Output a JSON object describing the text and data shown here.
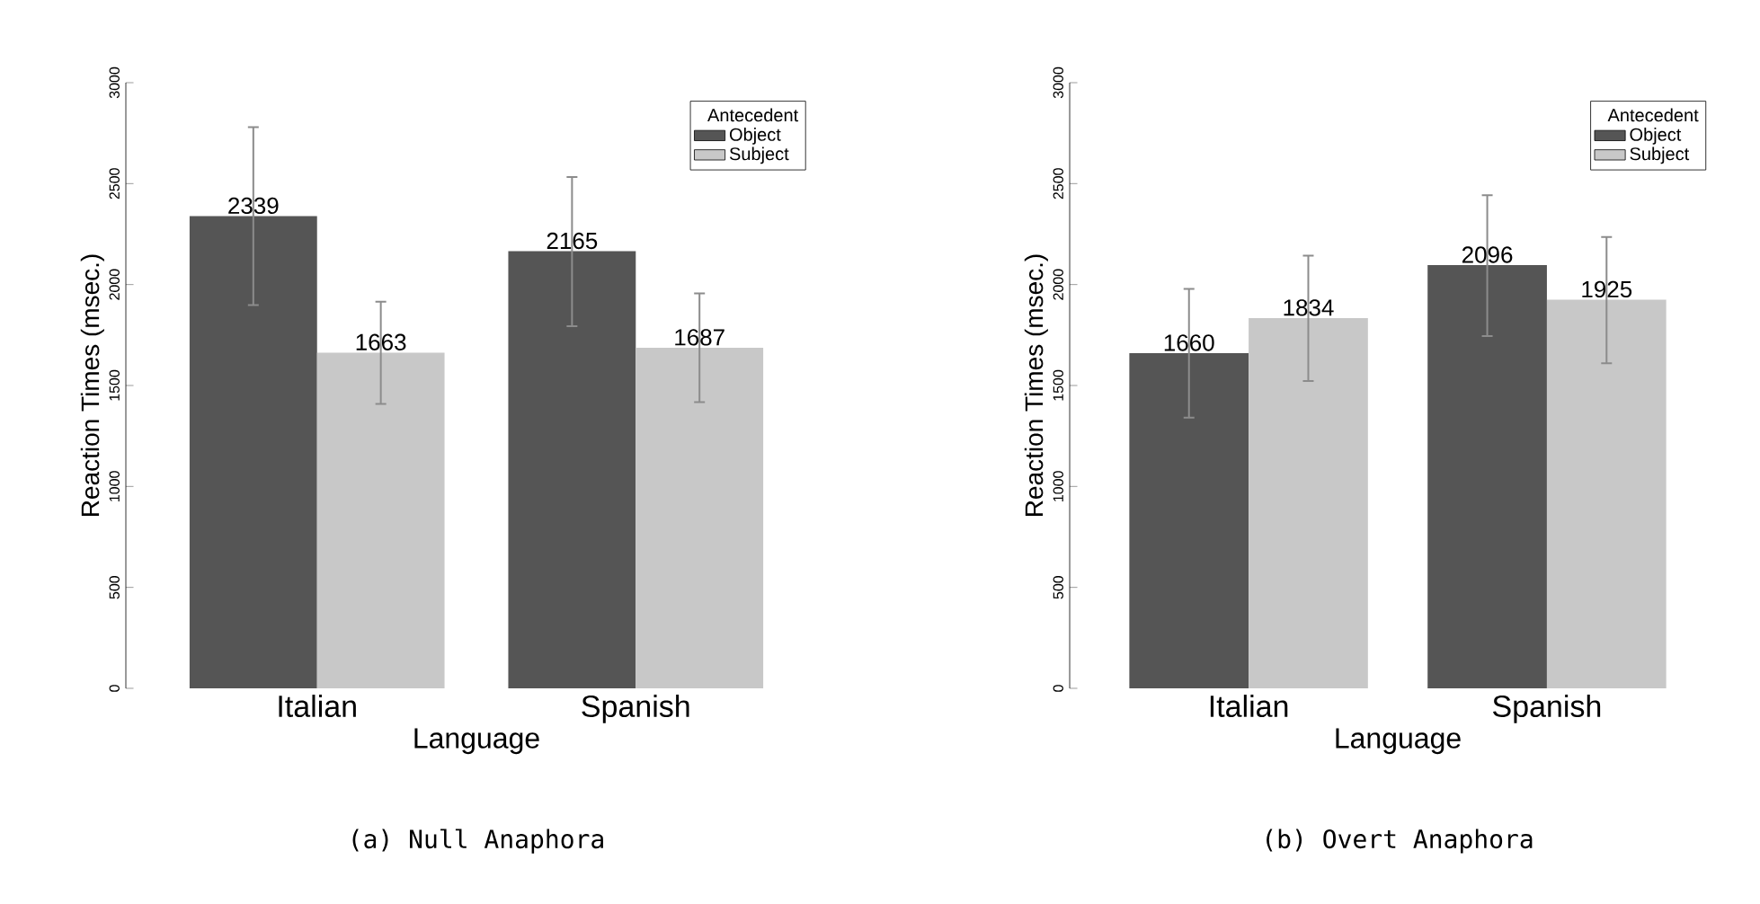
{
  "chart_data": [
    {
      "type": "bar",
      "xlabel": "Language",
      "ylabel": "Reaction Times (msec.)",
      "categories": [
        "Italian",
        "Spanish"
      ],
      "legend_title": "Antecedent",
      "legend": "top right",
      "ylim": [
        0,
        3000
      ],
      "yticks": [
        0,
        500,
        1000,
        1500,
        2000,
        2500,
        3000
      ],
      "data_labels": true,
      "annotations": [
        "(a) Null Anaphora"
      ],
      "series": [
        {
          "name": "Object",
          "color": "#555555",
          "values": [
            2339,
            2165
          ],
          "errors": [
            [
              1898,
              2780
            ],
            [
              1794,
              2533
            ]
          ]
        },
        {
          "name": "Subject",
          "color": "#c8c8c8",
          "values": [
            1663,
            1687
          ],
          "errors": [
            [
              1409,
              1915
            ],
            [
              1418,
              1956
            ]
          ]
        }
      ]
    },
    {
      "type": "bar",
      "xlabel": "Language",
      "ylabel": "Reaction Times (msec.)",
      "categories": [
        "Italian",
        "Spanish"
      ],
      "legend_title": "Antecedent",
      "legend": "top right",
      "ylim": [
        0,
        3000
      ],
      "yticks": [
        0,
        500,
        1000,
        1500,
        2000,
        2500,
        3000
      ],
      "data_labels": true,
      "annotations": [
        "(b) Overt Anaphora"
      ],
      "series": [
        {
          "name": "Object",
          "color": "#555555",
          "values": [
            1660,
            2096
          ],
          "errors": [
            [
              1341,
              1978
            ],
            [
              1745,
              2442
            ]
          ]
        },
        {
          "name": "Subject",
          "color": "#c8c8c8",
          "values": [
            1834,
            1925
          ],
          "errors": [
            [
              1522,
              2143
            ],
            [
              1610,
              2236
            ]
          ]
        }
      ]
    }
  ]
}
